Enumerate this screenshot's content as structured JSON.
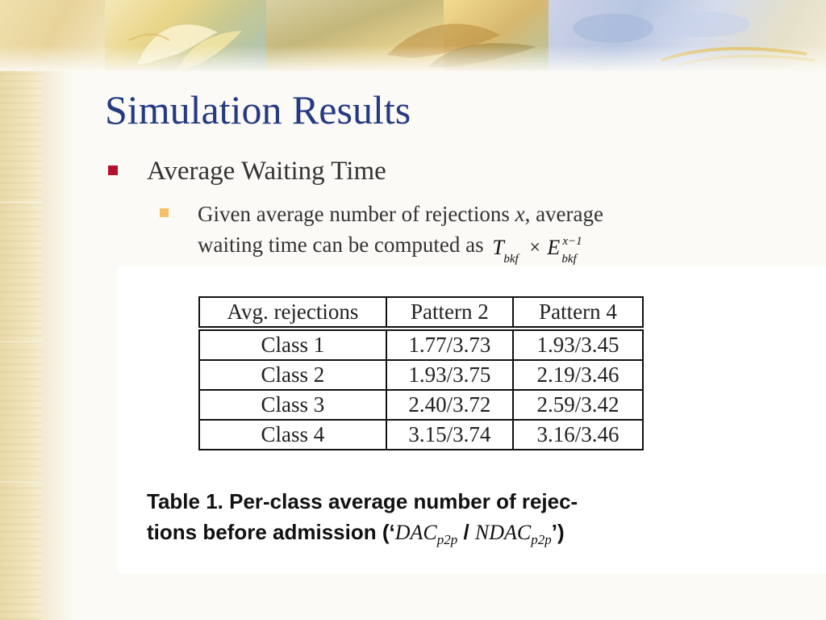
{
  "slide": {
    "title": "Simulation Results",
    "bullet_level1": "Average Waiting Time",
    "bullet_level2_part1": "Given average number of rejections ",
    "bullet_level2_var": "x",
    "bullet_level2_part2": ", average",
    "bullet_level2_line2": "waiting time can be computed as",
    "formula": {
      "T": "T",
      "T_sub": "bkf",
      "times": "×",
      "E": "E",
      "E_sup": "x−1",
      "E_sub": "bkf"
    },
    "colors": {
      "title": "#253a82",
      "bullet_level1_mark": "#b5112b",
      "bullet_level2_mark": "#f4c06a"
    }
  },
  "table": {
    "headers": [
      "Avg. rejections",
      "Pattern 2",
      "Pattern 4"
    ],
    "rows": [
      [
        "Class 1",
        "1.77/3.73",
        "1.93/3.45"
      ],
      [
        "Class 2",
        "1.93/3.75",
        "2.19/3.46"
      ],
      [
        "Class 3",
        "2.40/3.72",
        "2.59/3.42"
      ],
      [
        "Class 4",
        "3.15/3.74",
        "3.16/3.46"
      ]
    ],
    "caption_line1": "Table 1. Per-class average number of rejec-",
    "caption_line2_prefix": "tions before admission (‘",
    "caption_math1": "DAC",
    "caption_math1_sub": "p2p",
    "caption_sep": " / ",
    "caption_math2": "NDAC",
    "caption_math2_sub": "p2p",
    "caption_suffix": "’)"
  }
}
